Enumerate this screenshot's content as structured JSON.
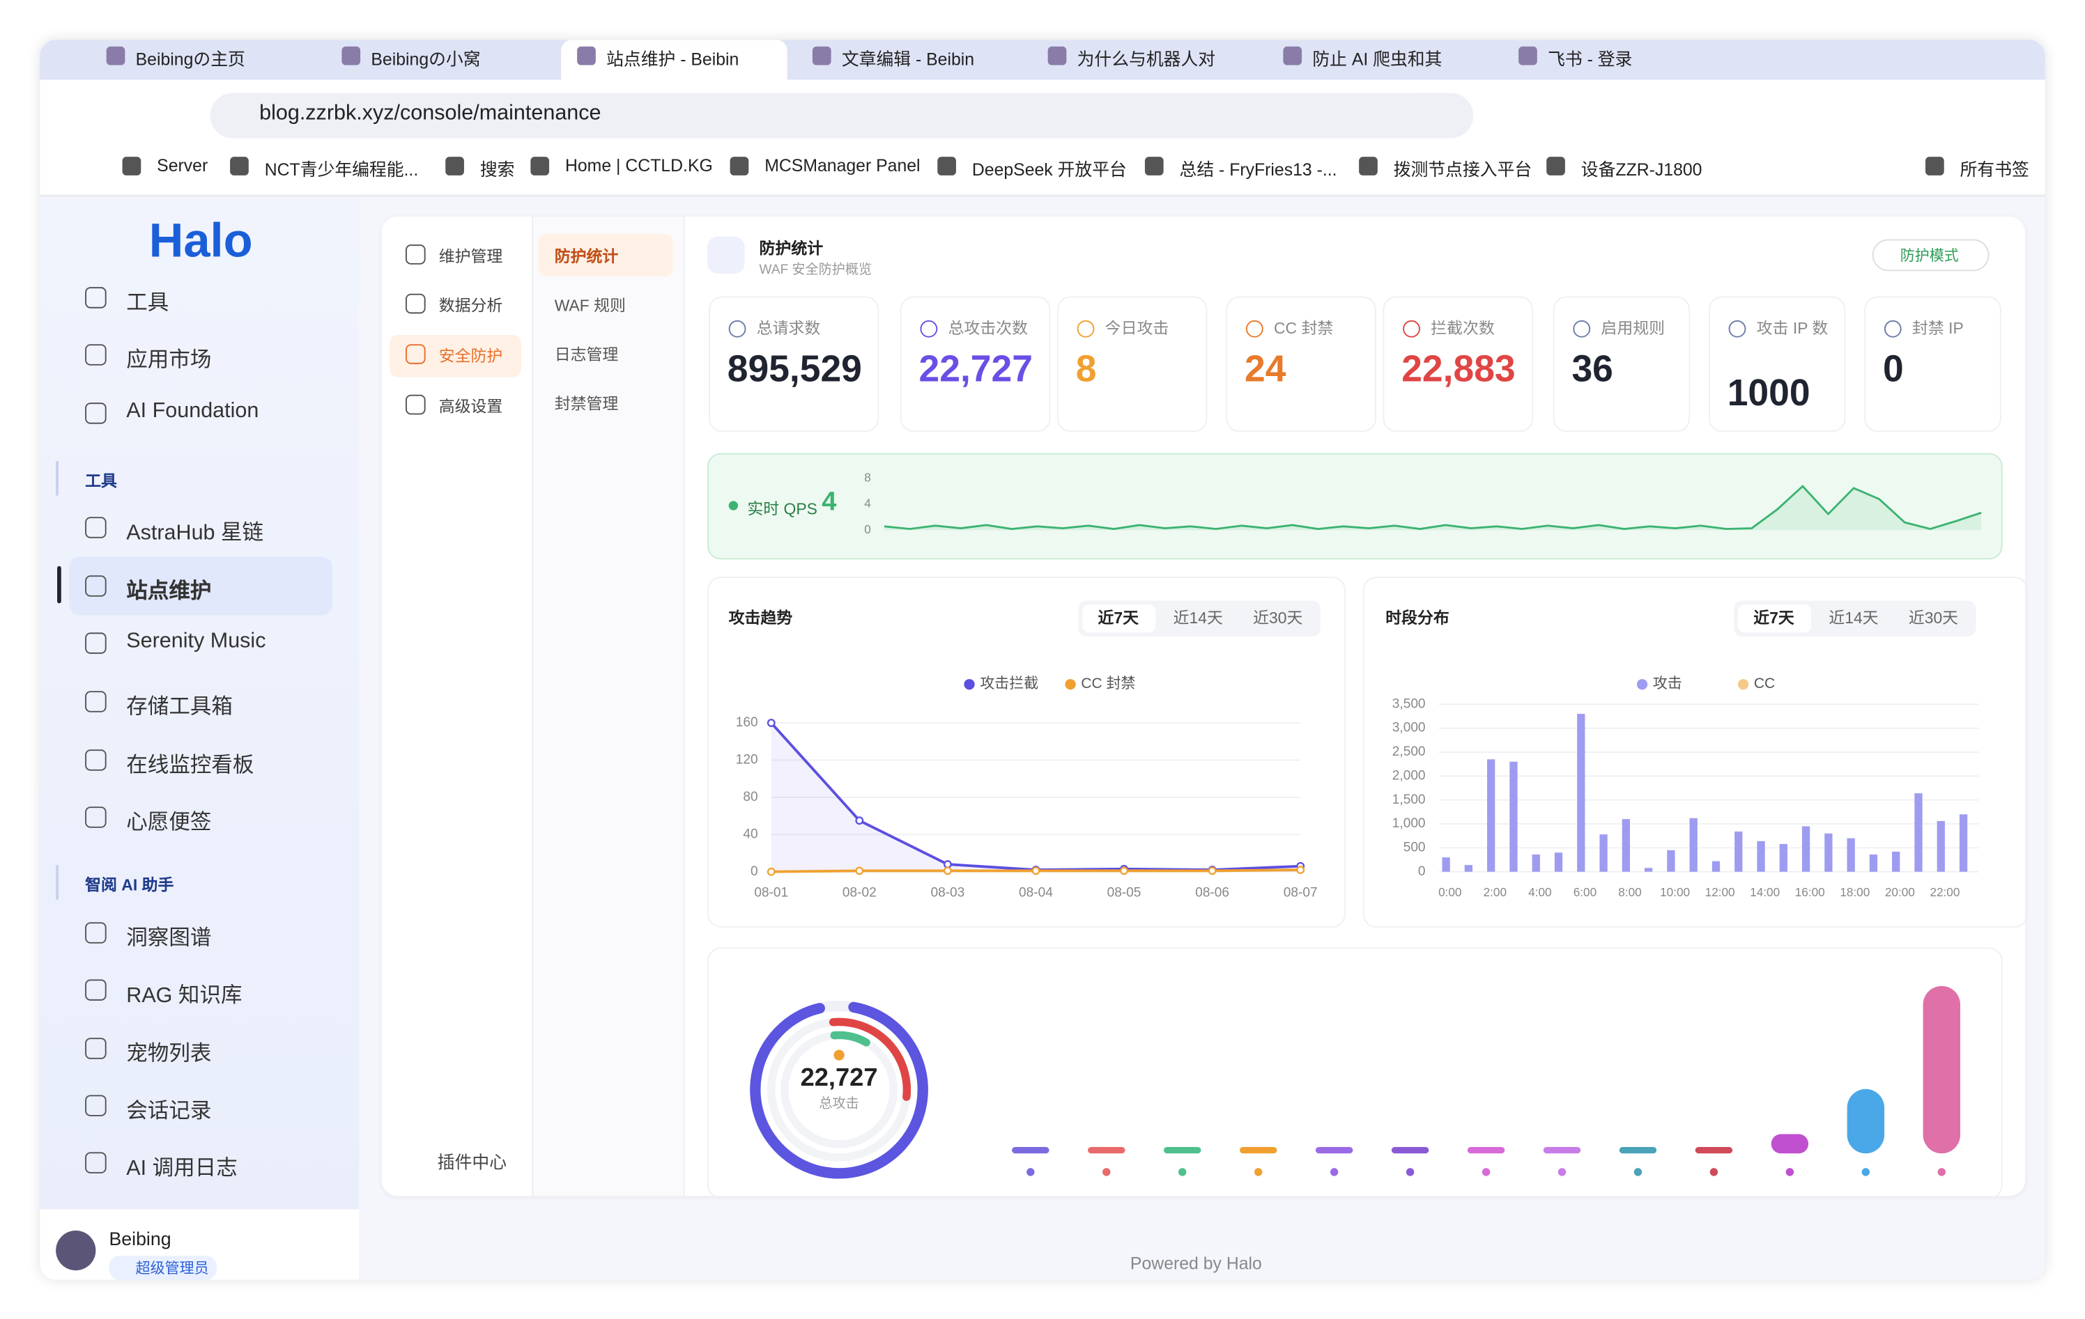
{
  "browser": {
    "tabs": [
      "Beibingの主页",
      "Beibingの小窝",
      "站点维护 - Beibin",
      "文章编辑 - Beibin",
      "为什么与机器人对",
      "防止 AI 爬虫和其",
      "飞书 - 登录"
    ],
    "url": "blog.zzrbk.xyz/console/maintenance",
    "bookmarks": [
      "Server",
      "NCT青少年编程能...",
      "搜索",
      "Home | CCTLD.KG",
      "MCSManager Panel",
      "DeepSeek 开放平台",
      "总结 - FryFries13 -...",
      "拨测节点接入平台",
      "设备ZZR-J1800",
      "所有书签"
    ]
  },
  "sidebar": {
    "logo": "Halo",
    "menu": [
      "工具",
      "应用市场",
      "AI Foundation"
    ],
    "sections": [
      {
        "title": "工具",
        "items": [
          "AstraHub 星链",
          "站点维护",
          "Serenity Music",
          "存储工具箱",
          "在线监控看板",
          "心愿便签"
        ]
      },
      {
        "title": "智阅 AI 助手",
        "items": [
          "洞察图谱",
          "RAG 知识库",
          "宠物列表",
          "会话记录",
          "AI 调用日志"
        ]
      }
    ],
    "user": {
      "name": "Beibing",
      "role": "超级管理员"
    }
  },
  "nav": {
    "primary": [
      "维护管理",
      "数据分析",
      "安全防护",
      "高级设置"
    ],
    "plugin_center": "插件中心",
    "secondary": [
      "防护统计",
      "WAF 规则",
      "日志管理",
      "封禁管理"
    ]
  },
  "header": {
    "title": "防护统计",
    "subtitle": "WAF 安全防护概览",
    "mode": "防护模式"
  },
  "stats": [
    {
      "label": "总请求数",
      "value": "895,529",
      "color": "#1f2430"
    },
    {
      "label": "总攻击次数",
      "value": "22,727",
      "color": "#6b4ee6"
    },
    {
      "label": "今日攻击",
      "value": "8",
      "color": "#f0a030"
    },
    {
      "label": "CC 封禁",
      "value": "24",
      "color": "#e87a2a"
    },
    {
      "label": "拦截次数",
      "value": "22,883",
      "color": "#e04545"
    },
    {
      "label": "启用规则",
      "value": "36",
      "color": "#1f2430"
    },
    {
      "label": "攻击 IP 数",
      "value": "1000",
      "color": "#1f2430"
    },
    {
      "label": "封禁 IP",
      "value": "0",
      "color": "#1f2430"
    }
  ],
  "qps": {
    "type": "line",
    "label": "实时 QPS",
    "current": 4,
    "color": "#3cb371",
    "ylim": [
      0,
      8
    ],
    "yticks": [
      0,
      4,
      8
    ],
    "values": [
      0.6,
      0.2,
      0.7,
      0.3,
      0.8,
      0.2,
      0.6,
      0.3,
      0.7,
      0.2,
      0.8,
      0.3,
      0.6,
      0.2,
      0.7,
      0.3,
      0.8,
      0.2,
      0.6,
      0.3,
      0.7,
      0.2,
      0.8,
      0.3,
      0.6,
      0.2,
      0.7,
      0.3,
      0.8,
      0.2,
      0.6,
      0.3,
      0.7,
      0.2,
      0.3,
      3.2,
      6.8,
      2.5,
      6.5,
      4.8,
      1.2,
      0.2,
      1.4,
      2.7
    ]
  },
  "attack_trend": {
    "type": "line",
    "title": "攻击趋势",
    "ranges": [
      "近7天",
      "近14天",
      "近30天"
    ],
    "categories": [
      "08-01",
      "08-02",
      "08-03",
      "08-04",
      "08-05",
      "08-06",
      "08-07"
    ],
    "series": [
      {
        "name": "攻击拦截",
        "color": "#5b4fe0",
        "values": [
          160,
          55,
          8,
          2,
          3,
          2,
          6
        ]
      },
      {
        "name": "CC 封禁",
        "color": "#f0a030",
        "values": [
          0,
          1,
          1,
          1,
          1,
          1,
          2
        ]
      }
    ],
    "ylim": [
      0,
      160
    ],
    "yticks": [
      0,
      40,
      80,
      120,
      160
    ],
    "grid": true
  },
  "hourly_distribution": {
    "type": "bar",
    "title": "时段分布",
    "ranges": [
      "近7天",
      "近14天",
      "近30天"
    ],
    "categories": [
      "0:00",
      null,
      "2:00",
      null,
      "4:00",
      null,
      "6:00",
      null,
      "8:00",
      null,
      "10:00",
      null,
      "12:00",
      null,
      "14:00",
      null,
      "16:00",
      null,
      "18:00",
      null,
      "20:00",
      null,
      "22:00",
      null
    ],
    "series": [
      {
        "name": "攻击",
        "color": "#9e9cf0",
        "values": [
          300,
          140,
          2350,
          2300,
          360,
          400,
          3300,
          780,
          1100,
          80,
          450,
          1120,
          220,
          840,
          640,
          580,
          950,
          800,
          700,
          360,
          420,
          1640,
          1060,
          1200
        ]
      },
      {
        "name": "CC",
        "color": "#f5c98a",
        "values": [
          0,
          0,
          0,
          0,
          0,
          0,
          0,
          0,
          0,
          0,
          0,
          0,
          0,
          0,
          0,
          0,
          0,
          0,
          0,
          0,
          0,
          0,
          0,
          0
        ]
      }
    ],
    "ylim": [
      0,
      3500
    ],
    "yticks": [
      0,
      {
        "value": 500,
        "label": "500"
      },
      {
        "value": 1000,
        "label": "1,000"
      },
      {
        "value": 1500,
        "label": "1,500"
      },
      {
        "value": 2000,
        "label": "2,000"
      },
      {
        "value": 2500,
        "label": "2,500"
      },
      {
        "value": 3000,
        "label": "3,000"
      },
      {
        "value": 3500,
        "label": "3,500"
      }
    ],
    "grid": true
  },
  "overview": {
    "type": "bar",
    "total": "22,727",
    "total_label": "总攻击",
    "values": [
      1,
      1,
      1,
      1,
      1,
      1,
      1,
      1,
      1,
      1,
      3,
      10,
      26
    ],
    "colors": [
      "#7a6be0",
      "#e86a6a",
      "#4fc08d",
      "#f0a030",
      "#9a6be6",
      "#8a5ad6",
      "#d76ad8",
      "#c77ce8",
      "#4aa3b8",
      "#d04a5a",
      "#c050d0",
      "#4aa8e8",
      "#e070a8"
    ]
  },
  "footer": "Powered by Halo"
}
